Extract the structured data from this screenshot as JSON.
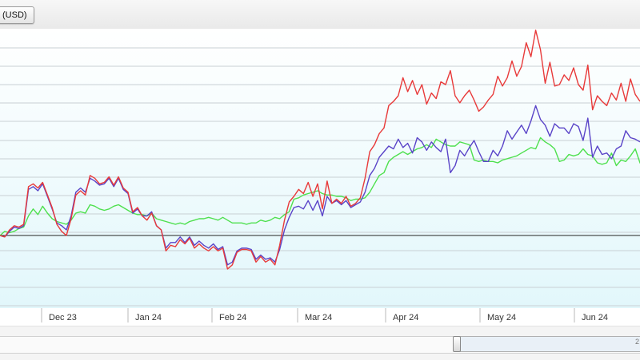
{
  "toolbar": {
    "currency_button_label": "(USD)"
  },
  "scrollbar": {
    "right_label": "2"
  },
  "chart_data": {
    "type": "line",
    "x_tick_labels": [
      "Dec 23",
      "Jan 24",
      "Feb 24",
      "Mar 24",
      "Apr 24",
      "May 24",
      "Jun 24"
    ],
    "grid": true,
    "ylim": [
      0,
      100
    ],
    "baseline_y": 26,
    "series": [
      {
        "color": "#e83a3a",
        "values": [
          26.0,
          25.5,
          28.0,
          29.5,
          29.0,
          30.0,
          43.5,
          44.5,
          43.0,
          45.0,
          40.5,
          36.0,
          30.0,
          27.5,
          26.0,
          32.0,
          40.5,
          42.0,
          40.5,
          47.5,
          46.5,
          44.5,
          45.0,
          47.0,
          44.0,
          47.0,
          43.0,
          41.5,
          34.5,
          36.0,
          33.0,
          31.5,
          34.0,
          29.5,
          28.0,
          20.5,
          22.5,
          22.0,
          24.5,
          23.0,
          25.0,
          21.5,
          23.0,
          21.5,
          20.5,
          22.0,
          20.5,
          21.5,
          14.0,
          15.5,
          20.0,
          21.0,
          21.0,
          20.5,
          16.5,
          18.5,
          16.5,
          17.5,
          15.5,
          22.5,
          31.5,
          38.0,
          40.0,
          42.5,
          41.0,
          45.0,
          40.0,
          44.5,
          35.5,
          45.5,
          37.5,
          39.0,
          37.5,
          40.0,
          36.5,
          37.5,
          39.5,
          46.5,
          56.0,
          58.5,
          62.5,
          64.5,
          72.5,
          74.0,
          76.0,
          82.5,
          77.5,
          81.5,
          76.5,
          80.0,
          73.0,
          77.0,
          75.0,
          81.0,
          80.0,
          85.0,
          76.0,
          73.5,
          76.0,
          78.0,
          74.5,
          70.5,
          72.0,
          74.5,
          76.5,
          83.0,
          79.5,
          82.5,
          88.5,
          83.0,
          86.5,
          95.0,
          90.0,
          99.5,
          92.5,
          80.5,
          88.0,
          79.5,
          80.0,
          83.5,
          81.5,
          86.0,
          80.0,
          78.0,
          87.0,
          71.0,
          76.0,
          74.0,
          72.5,
          77.0,
          74.5,
          80.5,
          74.0,
          82.0,
          76.5,
          74.0
        ]
      },
      {
        "color": "#5a44c8",
        "values": [
          26.0,
          25.5,
          27.5,
          29.0,
          28.5,
          29.5,
          42.5,
          43.5,
          42.0,
          44.5,
          40.0,
          35.5,
          30.5,
          29.5,
          28.0,
          33.0,
          41.5,
          43.0,
          41.5,
          46.5,
          45.5,
          44.0,
          44.5,
          46.5,
          43.5,
          46.5,
          42.5,
          41.0,
          34.0,
          35.5,
          33.0,
          33.0,
          34.5,
          29.5,
          28.0,
          21.5,
          23.5,
          23.5,
          25.5,
          23.5,
          25.5,
          22.5,
          24.0,
          22.5,
          21.5,
          23.0,
          21.0,
          22.0,
          15.5,
          16.5,
          20.5,
          21.5,
          21.5,
          21.0,
          17.5,
          19.0,
          17.5,
          18.0,
          16.5,
          21.0,
          28.0,
          32.5,
          36.0,
          36.5,
          35.5,
          38.5,
          35.0,
          38.5,
          33.0,
          40.0,
          37.5,
          38.5,
          37.0,
          38.5,
          36.0,
          37.0,
          38.0,
          41.5,
          47.5,
          50.0,
          54.0,
          56.0,
          58.0,
          57.0,
          60.5,
          57.5,
          59.0,
          55.5,
          61.0,
          59.5,
          56.5,
          59.5,
          57.5,
          56.0,
          60.5,
          48.5,
          51.0,
          56.5,
          54.5,
          57.5,
          60.0,
          56.0,
          52.5,
          52.5,
          56.5,
          54.5,
          58.0,
          63.5,
          60.5,
          63.0,
          65.5,
          62.5,
          67.0,
          72.5,
          67.5,
          65.5,
          61.5,
          66.0,
          64.5,
          64.5,
          62.5,
          66.0,
          65.0,
          60.0,
          68.0,
          54.0,
          58.0,
          55.0,
          55.5,
          53.5,
          57.0,
          58.0,
          63.5,
          61.0,
          60.5,
          59.5
        ]
      },
      {
        "color": "#4ee04e",
        "values": [
          26.0,
          27.5,
          27.0,
          27.5,
          28.5,
          29.0,
          33.0,
          35.5,
          33.5,
          36.5,
          34.0,
          32.0,
          31.0,
          30.5,
          30.0,
          31.5,
          34.0,
          34.5,
          34.0,
          37.0,
          36.5,
          35.5,
          35.0,
          35.5,
          36.5,
          37.0,
          36.0,
          35.0,
          34.0,
          33.5,
          33.5,
          33.0,
          34.0,
          32.0,
          31.5,
          31.0,
          30.5,
          30.0,
          30.5,
          30.0,
          31.0,
          31.5,
          32.0,
          32.0,
          32.5,
          32.0,
          31.5,
          32.5,
          31.5,
          30.5,
          30.5,
          30.5,
          30.0,
          30.5,
          30.5,
          31.5,
          31.0,
          31.5,
          32.5,
          32.0,
          33.5,
          34.5,
          39.0,
          39.5,
          40.5,
          41.0,
          41.5,
          42.0,
          41.0,
          40.5,
          40.5,
          40.0,
          40.0,
          39.5,
          38.5,
          39.0,
          39.0,
          39.5,
          41.5,
          44.5,
          47.5,
          48.5,
          52.5,
          54.0,
          55.0,
          56.0,
          55.0,
          56.0,
          57.0,
          57.5,
          58.5,
          57.5,
          60.5,
          59.5,
          58.5,
          58.0,
          58.0,
          59.5,
          59.0,
          58.5,
          53.0,
          52.5,
          53.0,
          52.5,
          52.5,
          52.0,
          53.0,
          53.5,
          54.0,
          54.5,
          55.5,
          56.5,
          57.5,
          57.0,
          61.0,
          59.5,
          58.5,
          57.0,
          52.5,
          53.0,
          55.0,
          54.5,
          55.0,
          57.0,
          55.0,
          54.5,
          52.0,
          51.5,
          52.0,
          55.5,
          51.0,
          53.0,
          52.5,
          54.5,
          57.0,
          52.0,
          50.0
        ]
      }
    ]
  }
}
